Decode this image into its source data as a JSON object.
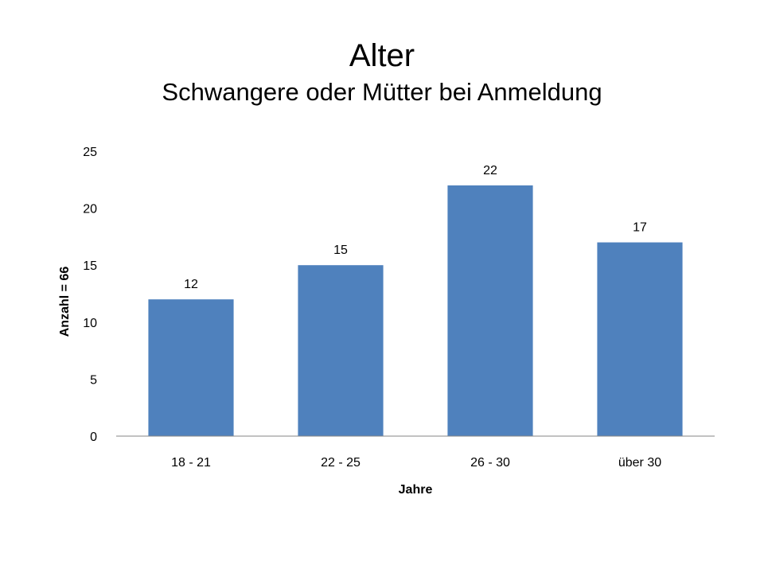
{
  "chart_data": {
    "type": "bar",
    "title": "Alter",
    "subtitle": "Schwangere oder Mütter bei Anmeldung",
    "xlabel": "Jahre",
    "ylabel": "Anzahl = 66",
    "categories": [
      "18 - 21",
      "22 - 25",
      "26 - 30",
      "über 30"
    ],
    "values": [
      12,
      15,
      22,
      17
    ],
    "data_labels": [
      "12",
      "15",
      "22",
      "17"
    ],
    "ylim": [
      0,
      25
    ],
    "yticks": [
      0,
      5,
      10,
      15,
      20,
      25
    ],
    "ytick_labels": [
      "0",
      "5",
      "10",
      "15",
      "20",
      "25"
    ],
    "grid": false,
    "legend": "none",
    "bar_color": "#4F81BD",
    "axis_color": "#868686"
  }
}
